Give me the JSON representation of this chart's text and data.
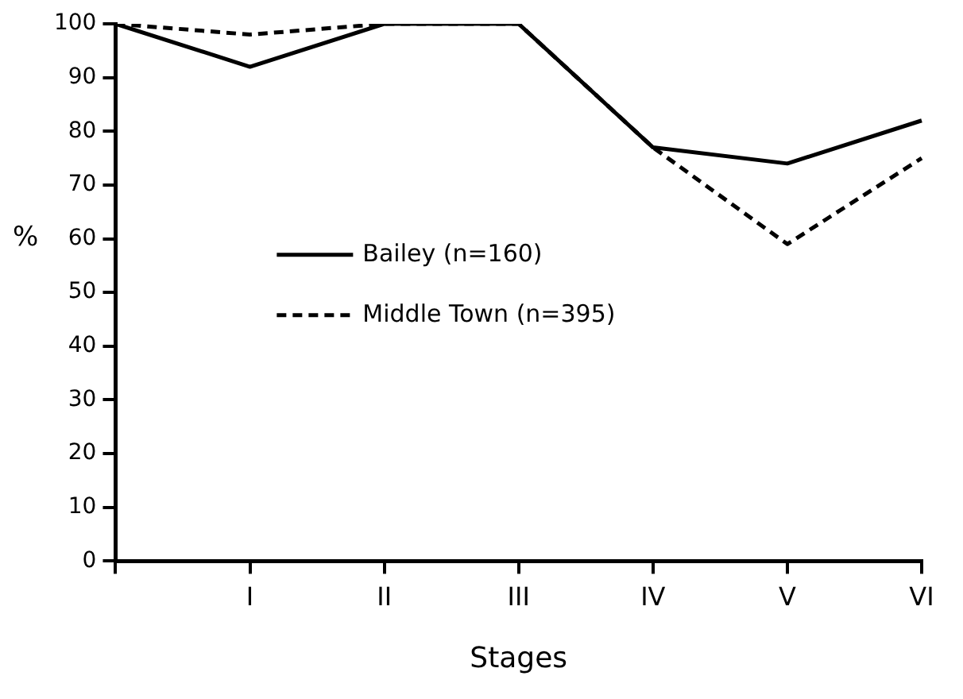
{
  "chart_data": {
    "type": "line",
    "xlabel": "Stages",
    "ylabel": "%",
    "categories": [
      null,
      "I",
      "II",
      "III",
      "IV",
      "V",
      "VI"
    ],
    "series": [
      {
        "name": "Bailey (n=160)",
        "color": "#000000",
        "line_style": "solid",
        "values": [
          100,
          92,
          100,
          100,
          77,
          74,
          82
        ]
      },
      {
        "name": "Middle Town (n=395)",
        "color": "#000000",
        "line_style": "dashed",
        "values": [
          100,
          98,
          100,
          100,
          77,
          59,
          75
        ]
      }
    ],
    "ylim": [
      0,
      100
    ],
    "yticks": [
      0,
      10,
      20,
      30,
      40,
      50,
      60,
      70,
      80,
      90,
      100
    ],
    "grid": false,
    "legend": "left",
    "marker": "none"
  }
}
